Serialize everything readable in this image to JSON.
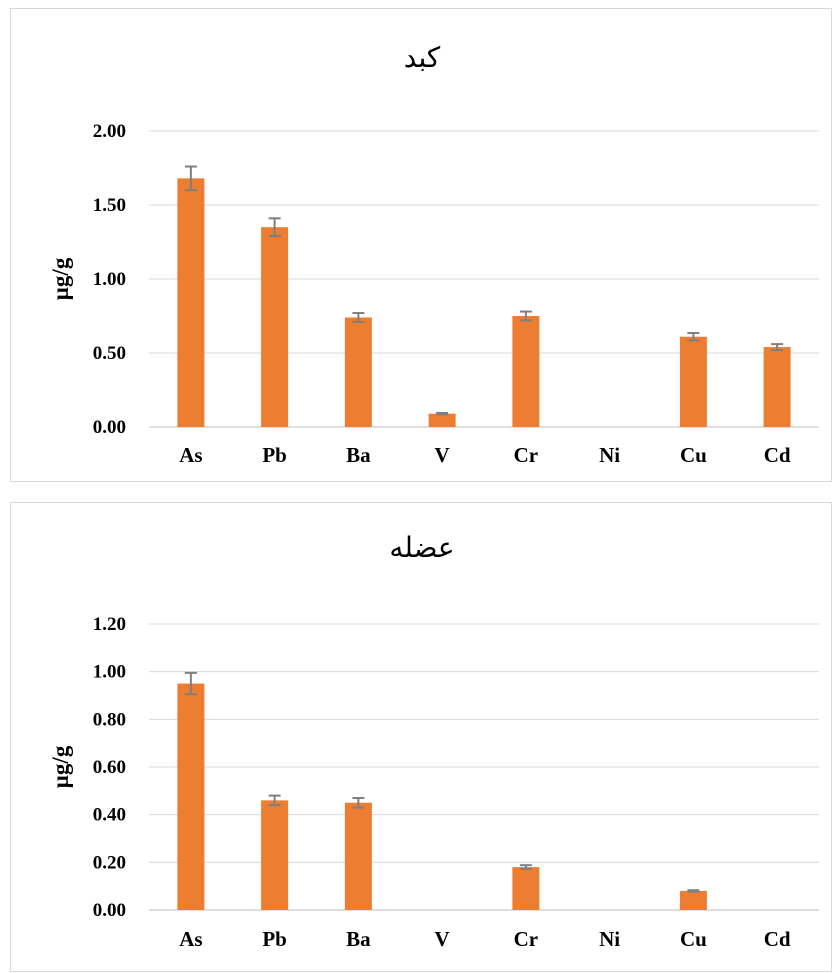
{
  "chart_data": [
    {
      "type": "bar",
      "title": "کبد",
      "ylabel": "µg/g",
      "xlabel": "",
      "categories": [
        "As",
        "Pb",
        "Ba",
        "V",
        "Cr",
        "Ni",
        "Cu",
        "Cd"
      ],
      "values": [
        1.68,
        1.35,
        0.74,
        0.09,
        0.75,
        0,
        0.61,
        0.54
      ],
      "errors": [
        0.08,
        0.06,
        0.03,
        0.005,
        0.03,
        0,
        0.025,
        0.02
      ],
      "ylim": [
        0,
        2
      ],
      "yticks": [
        "0.00",
        "0.50",
        "1.00",
        "1.50",
        "2.00"
      ],
      "grid": true,
      "bar_color": "#ED7D31",
      "error_color": "#7F7F7F"
    },
    {
      "type": "bar",
      "title": "عضله",
      "ylabel": "µg/g",
      "xlabel": "",
      "categories": [
        "As",
        "Pb",
        "Ba",
        "V",
        "Cr",
        "Ni",
        "Cu",
        "Cd"
      ],
      "values": [
        0.95,
        0.46,
        0.45,
        0,
        0.18,
        0,
        0.08,
        0
      ],
      "errors": [
        0.045,
        0.02,
        0.02,
        0,
        0.008,
        0,
        0.003,
        0
      ],
      "ylim": [
        0,
        1.2
      ],
      "yticks": [
        "0.00",
        "0.20",
        "0.40",
        "0.60",
        "0.80",
        "1.00",
        "1.20"
      ],
      "grid": true,
      "bar_color": "#ED7D31",
      "error_color": "#7F7F7F"
    }
  ]
}
